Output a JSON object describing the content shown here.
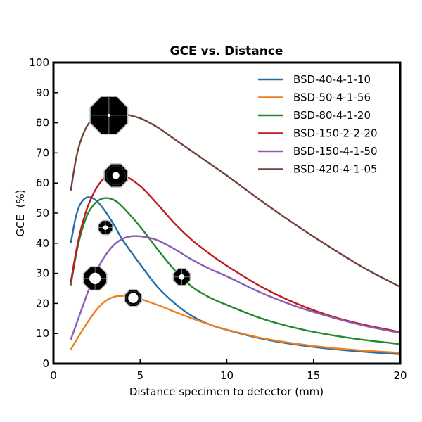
{
  "chart_data": {
    "type": "line",
    "title": "GCE vs. Distance",
    "xlabel": "Distance specimen to detector (mm)",
    "ylabel": "GCE  (%)",
    "xlim": [
      0,
      20
    ],
    "ylim": [
      0,
      100
    ],
    "xticks": [
      0,
      5,
      10,
      15,
      20
    ],
    "yticks": [
      0,
      10,
      20,
      30,
      40,
      50,
      60,
      70,
      80,
      90,
      100
    ],
    "grid": false,
    "legend_position": "top-right",
    "series": [
      {
        "name": "BSD-40-4-1-10",
        "color": "#1f6fa8",
        "x": [
          1,
          1.3,
          1.6,
          2.0,
          2.5,
          3.0,
          3.5,
          4.0,
          5.0,
          6.0,
          7.0,
          8.0,
          9.0,
          10,
          12,
          14,
          16,
          18,
          20
        ],
        "y": [
          40,
          49,
          53.5,
          55.3,
          54,
          50.5,
          46,
          41,
          33,
          25.5,
          20,
          15.8,
          13,
          11.2,
          8.3,
          6.3,
          4.9,
          3.9,
          3.1
        ]
      },
      {
        "name": "BSD-50-4-1-56",
        "color": "#f07f1a",
        "x": [
          1,
          1.5,
          2.0,
          2.5,
          3.0,
          3.5,
          4.0,
          4.5,
          5.0,
          6.0,
          7.0,
          8.0,
          9.0,
          10,
          12,
          14,
          16,
          18,
          20
        ],
        "y": [
          4.7,
          9.5,
          14,
          18,
          20.8,
          22.2,
          22.5,
          22.2,
          21.5,
          19.5,
          17.2,
          15,
          13,
          11.3,
          8.5,
          6.6,
          5.2,
          4.3,
          3.6
        ]
      },
      {
        "name": "BSD-80-4-1-20",
        "color": "#21892b",
        "x": [
          1,
          1.3,
          1.6,
          2.0,
          2.5,
          3.0,
          3.5,
          4.0,
          5.0,
          6.0,
          7.0,
          8.0,
          9.0,
          10,
          12,
          14,
          16,
          18,
          20
        ],
        "y": [
          26,
          36,
          43.5,
          50,
          53.8,
          55,
          54.3,
          52,
          45.5,
          38,
          31,
          25.5,
          22,
          19.5,
          15,
          11.8,
          9.5,
          7.8,
          6.5
        ]
      },
      {
        "name": "BSD-150-2-2-20",
        "color": "#c01a1d",
        "x": [
          1,
          1.3,
          1.6,
          2.0,
          2.5,
          3.0,
          3.5,
          4.0,
          5.0,
          6.0,
          7.0,
          8.0,
          9.0,
          10,
          12,
          14,
          16,
          18,
          20
        ],
        "y": [
          27,
          37,
          45,
          52.5,
          58.5,
          62,
          63,
          62.8,
          59,
          53,
          46.5,
          41,
          36.5,
          32.5,
          25.5,
          20,
          15.8,
          12.8,
          10.5
        ]
      },
      {
        "name": "BSD-150-4-1-50",
        "color": "#8c5bb5",
        "x": [
          1,
          1.5,
          2.0,
          2.5,
          3.0,
          3.5,
          4.0,
          4.5,
          5.0,
          5.5,
          6.0,
          7.0,
          8.0,
          9.0,
          10,
          12,
          14,
          16,
          18,
          20
        ],
        "y": [
          8,
          16,
          24,
          31,
          36,
          39.5,
          41.5,
          42.3,
          42.3,
          41.8,
          41,
          38,
          34.5,
          31.5,
          29,
          23.5,
          19,
          15.5,
          12.5,
          10.2
        ]
      },
      {
        "name": "BSD-420-4-1-05",
        "color": "#70403a",
        "x": [
          1,
          1.3,
          1.6,
          2.0,
          2.5,
          3.0,
          3.5,
          4.0,
          5.0,
          6.0,
          7.0,
          8.0,
          9.0,
          10,
          12,
          14,
          16,
          18,
          20
        ],
        "y": [
          57.5,
          68,
          74.5,
          79.5,
          82,
          83,
          83.3,
          83,
          81.5,
          78.5,
          74.5,
          70.5,
          66.5,
          62.5,
          54,
          46,
          38.5,
          31.5,
          25.5
        ]
      }
    ],
    "markers": [
      {
        "x": 3.2,
        "y": 82.5,
        "size": "large",
        "style": "cross"
      },
      {
        "x": 3.6,
        "y": 62.5,
        "size": "medium",
        "style": "ring"
      },
      {
        "x": 3.0,
        "y": 45.2,
        "size": "small",
        "style": "cross-dot"
      },
      {
        "x": 2.4,
        "y": 28.3,
        "size": "medium",
        "style": "hole"
      },
      {
        "x": 7.4,
        "y": 28.8,
        "size": "small-medium",
        "style": "cross-dot"
      },
      {
        "x": 4.6,
        "y": 21.8,
        "size": "small-medium",
        "style": "ring"
      }
    ]
  }
}
